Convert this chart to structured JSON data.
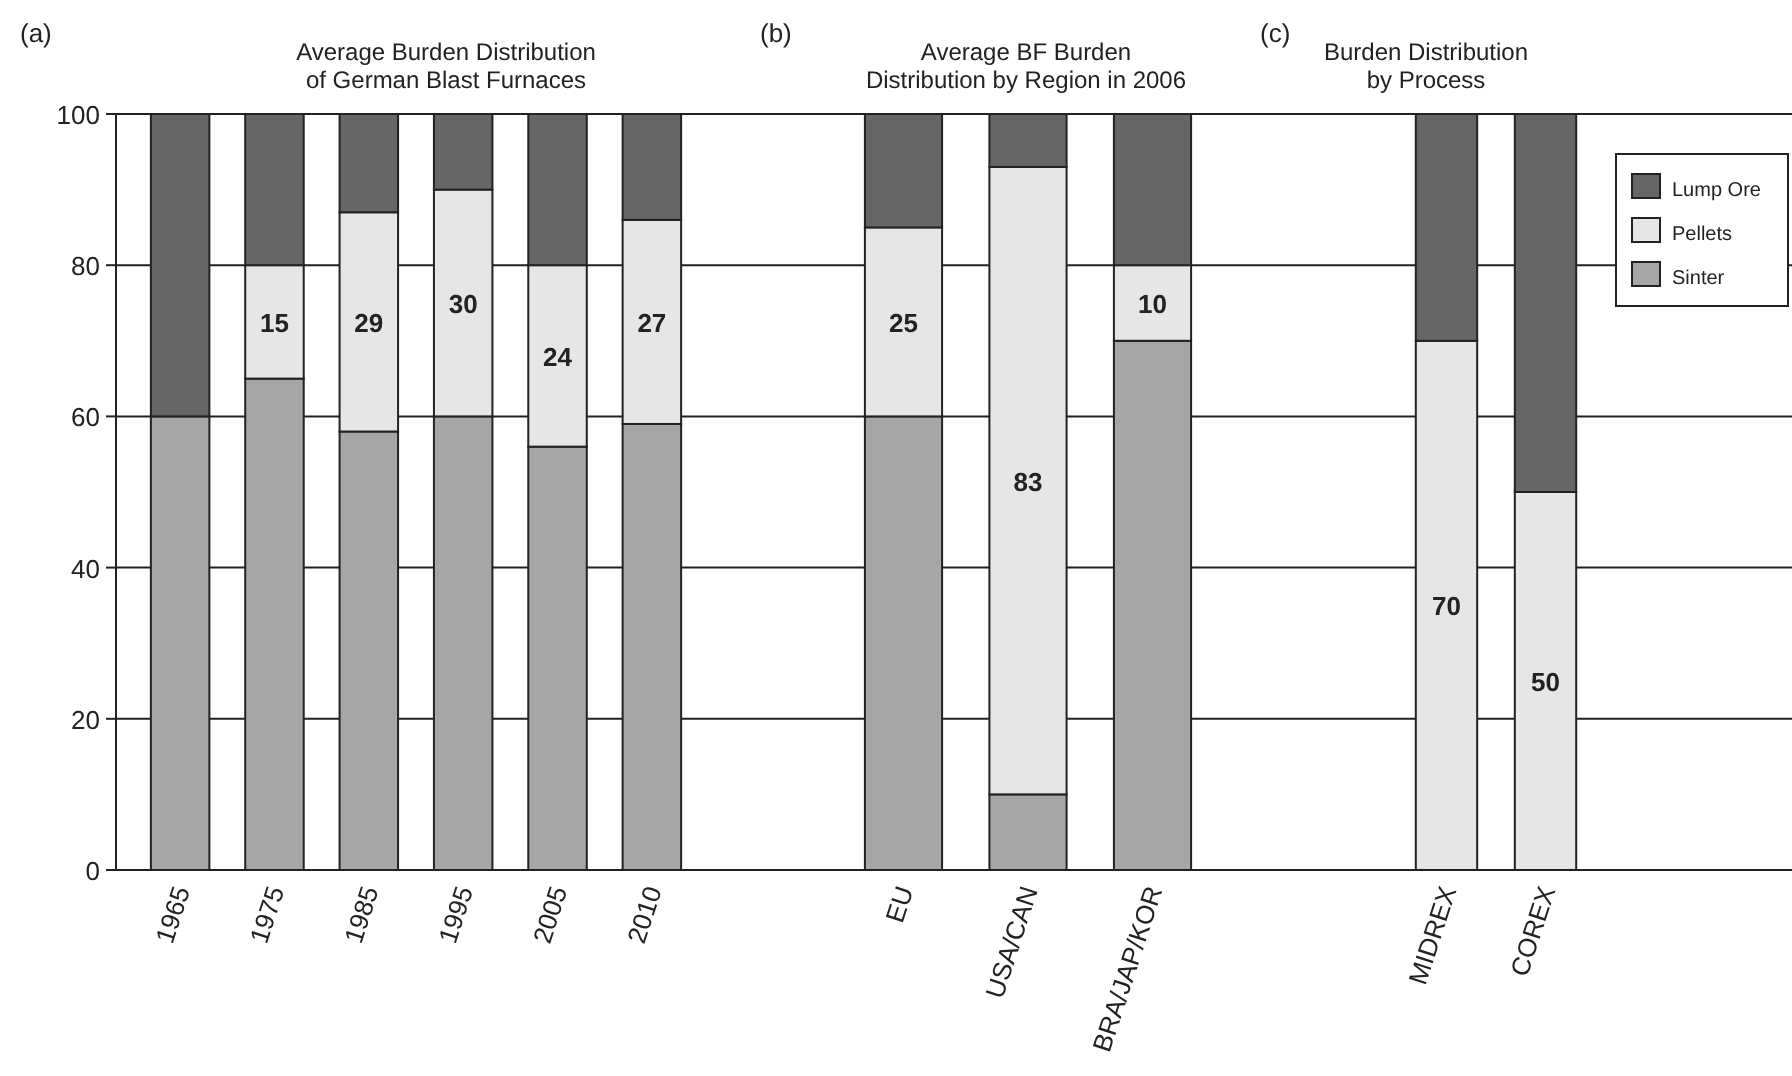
{
  "chart_data": [
    {
      "type": "bar",
      "title": "Average Burden Distribution\nof German Blast Furnaces",
      "annotations": [
        "(a)"
      ],
      "categories": [
        "1965",
        "1975",
        "1985",
        "1995",
        "2005",
        "2010"
      ],
      "stacked": true,
      "ylim": [
        0,
        100
      ],
      "yticks": [
        0,
        20,
        40,
        60,
        80,
        100
      ],
      "grid": "y",
      "legend": false,
      "series": [
        {
          "color": "#a6a6a6",
          "values": [
            60,
            65,
            58,
            60,
            56,
            59
          ]
        },
        {
          "color": "#e6e6e6",
          "values": [
            0,
            15,
            29,
            30,
            24,
            27
          ],
          "value_labels": [
            null,
            "15",
            "29",
            "30",
            "24",
            "27"
          ]
        },
        {
          "color": "#666666",
          "values": [
            40,
            20,
            13,
            10,
            20,
            14
          ]
        }
      ]
    },
    {
      "type": "bar",
      "title": "Average BF Burden\nDistribution by Region in 2006",
      "annotations": [
        "(b)"
      ],
      "categories": [
        "EU",
        "USA/CAN",
        "BRA/JAP/KOR"
      ],
      "stacked": true,
      "ylim": [
        0,
        100
      ],
      "yticks": [
        0,
        20,
        40,
        60,
        80,
        100
      ],
      "grid": "y",
      "legend": false,
      "tick_labels": "x",
      "series": [
        {
          "color": "#a6a6a6",
          "values": [
            60,
            10,
            70
          ]
        },
        {
          "color": "#e6e6e6",
          "values": [
            25,
            83,
            10
          ],
          "value_labels": [
            "25",
            "83",
            "10"
          ]
        },
        {
          "color": "#666666",
          "values": [
            15,
            7,
            20
          ]
        }
      ]
    },
    {
      "type": "bar",
      "title": "Burden Distribution\nby Process",
      "annotations": [
        "(c)"
      ],
      "categories": [
        "MIDREX",
        "COREX"
      ],
      "stacked": true,
      "ylim": [
        0,
        100
      ],
      "yticks": [
        0,
        20,
        40,
        60,
        80,
        100
      ],
      "grid": "y",
      "legend": "top right",
      "tick_labels": "x",
      "series": [
        {
          "name": "Sinter",
          "color": "#a6a6a6",
          "values": [
            0,
            0
          ]
        },
        {
          "name": "Pellets",
          "color": "#e6e6e6",
          "values": [
            70,
            50
          ],
          "value_labels": [
            "70",
            "50"
          ]
        },
        {
          "name": "Lump Ore",
          "color": "#666666",
          "values": [
            30,
            50
          ]
        }
      ]
    }
  ]
}
